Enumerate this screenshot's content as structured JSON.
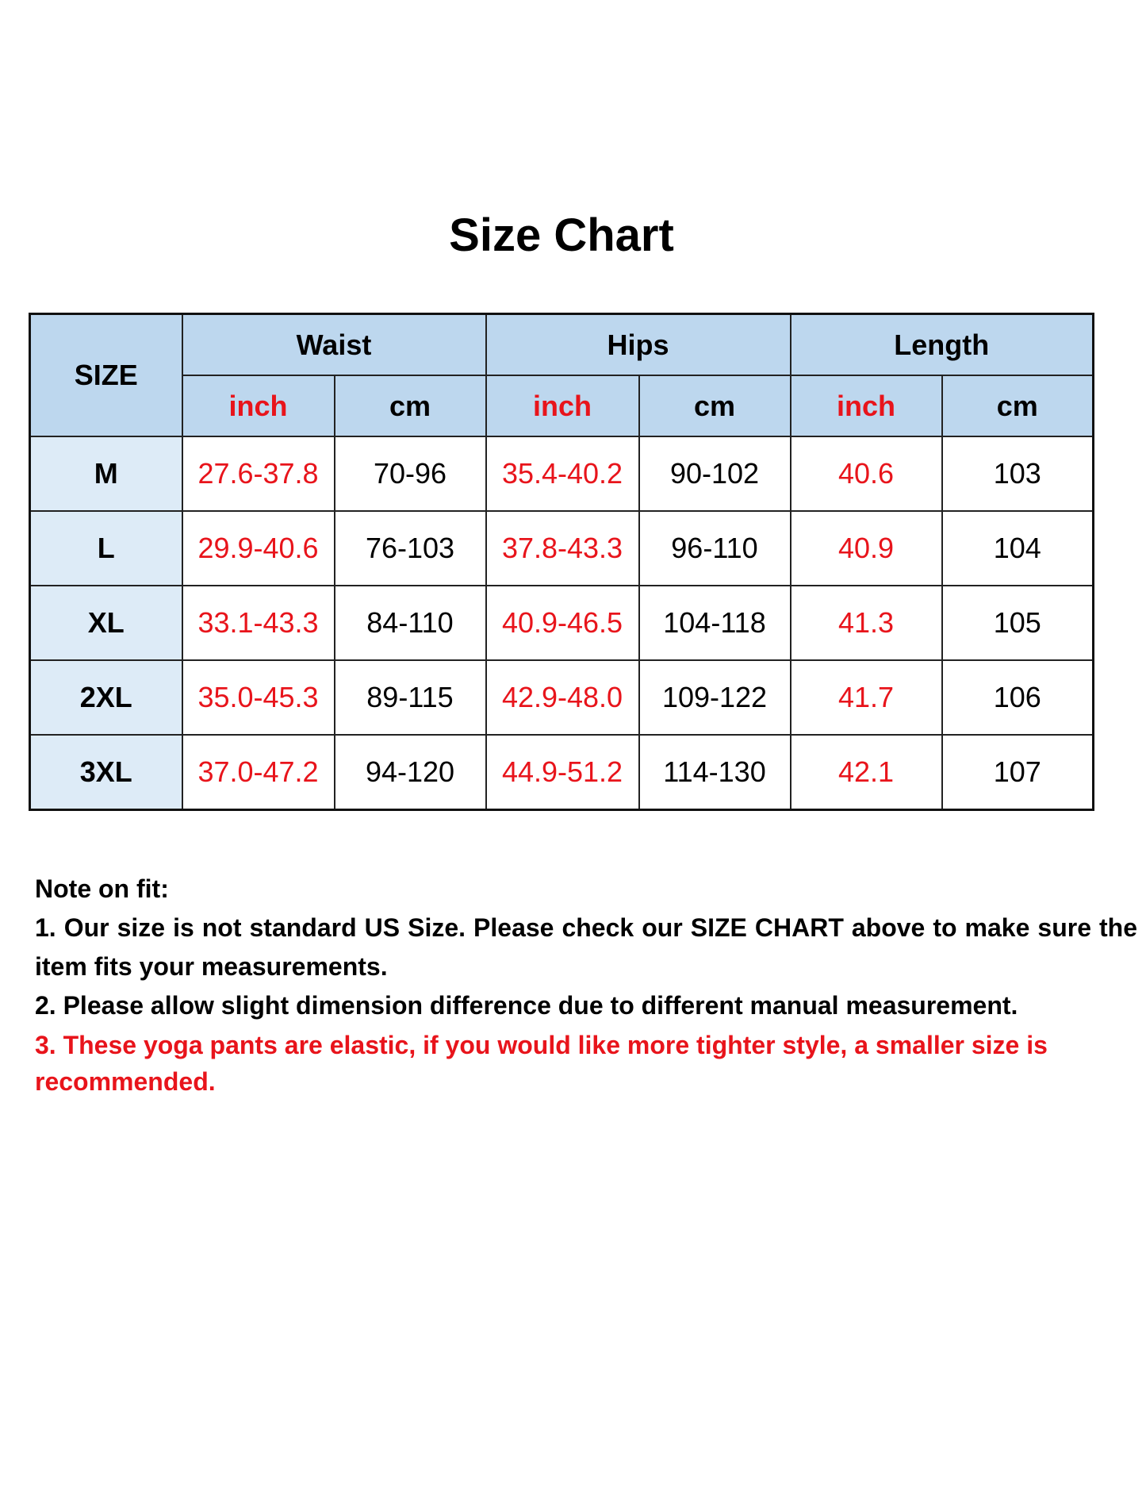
{
  "title": "Size Chart",
  "colors": {
    "header_bg": "#bdd7ee",
    "size_col_bg": "#ddebf7",
    "inch_text": "#e8141b",
    "note3_text": "#e8141b"
  },
  "table": {
    "size_header": "SIZE",
    "groups": [
      "Waist",
      "Hips",
      "Length"
    ],
    "units": [
      "inch",
      "cm",
      "inch",
      "cm",
      "inch",
      "cm"
    ],
    "rows": [
      {
        "size": "M",
        "values": [
          "27.6-37.8",
          "70-96",
          "35.4-40.2",
          "90-102",
          "40.6",
          "103"
        ]
      },
      {
        "size": "L",
        "values": [
          "29.9-40.6",
          "76-103",
          "37.8-43.3",
          "96-110",
          "40.9",
          "104"
        ]
      },
      {
        "size": "XL",
        "values": [
          "33.1-43.3",
          "84-110",
          "40.9-46.5",
          "104-118",
          "41.3",
          "105"
        ]
      },
      {
        "size": "2XL",
        "values": [
          "35.0-45.3",
          "89-115",
          "42.9-48.0",
          "109-122",
          "41.7",
          "106"
        ]
      },
      {
        "size": "3XL",
        "values": [
          "37.0-47.2",
          "94-120",
          "44.9-51.2",
          "114-130",
          "42.1",
          "107"
        ]
      }
    ]
  },
  "notes": {
    "heading": "Note on fit:",
    "items": [
      "1. Our size is not standard US Size. Please check our SIZE CHART above to make sure the item fits your measurements.",
      "2. Please allow slight dimension difference due to different manual measurement.",
      "3. These yoga pants are elastic, if you would like more tighter style, a smaller size is recommended."
    ]
  }
}
